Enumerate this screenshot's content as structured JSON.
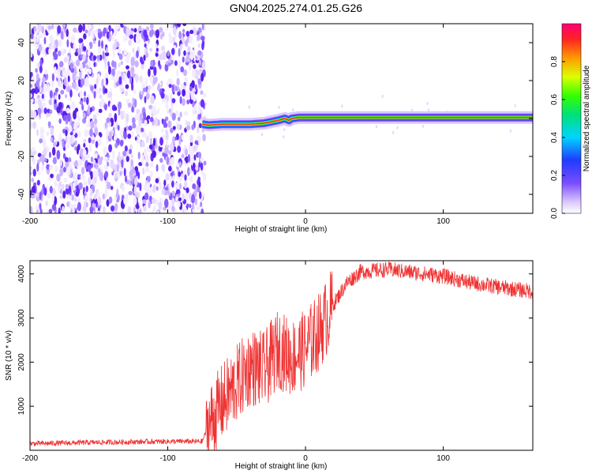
{
  "page": {
    "title": "GN04.2025.274.01.25.G26"
  },
  "chart_data": [
    {
      "type": "heatmap",
      "xlabel": "Height of straight line (km)",
      "ylabel": "Frequency (Hz)",
      "xlim": [
        -200,
        165
      ],
      "ylim": [
        -50,
        50
      ],
      "x_ticks": [
        -200,
        -100,
        0,
        100
      ],
      "y_ticks": [
        -40,
        -20,
        0,
        20,
        40
      ],
      "tick_labels": {
        "x": [
          "-200",
          "-100",
          "0",
          "100"
        ],
        "y": [
          "-40",
          "-20",
          "0",
          "20",
          "40"
        ]
      },
      "colorbar": {
        "label": "Normalized spectral amplitude",
        "range": [
          0,
          1
        ],
        "ticks": [
          0.0,
          0.2,
          0.4,
          0.6,
          0.8
        ],
        "tick_labels": [
          "0.0",
          "0.2",
          "0.4",
          "0.6",
          "0.8"
        ]
      },
      "noise_region_x": [
        -200,
        -73
      ],
      "signal_trace": {
        "x": [
          -75,
          -70,
          -60,
          -50,
          -40,
          -30,
          -20,
          -15,
          -12,
          -10,
          -5,
          0,
          50,
          100,
          165
        ],
        "y": [
          -3,
          -3.5,
          -3,
          -3,
          -3,
          -2.5,
          -1,
          0,
          -1,
          0,
          0.5,
          0.5,
          0.5,
          0.5,
          0.5
        ]
      },
      "grid": false,
      "legend": "colorbar right"
    },
    {
      "type": "line",
      "xlabel": "Height of straight line (km)",
      "ylabel": "SNR (10 * v/v)",
      "xlim": [
        -200,
        165
      ],
      "ylim": [
        0,
        4300
      ],
      "x_ticks": [
        -200,
        -100,
        0,
        100
      ],
      "y_ticks": [
        1000,
        2000,
        3000,
        4000
      ],
      "tick_labels": {
        "x": [
          "-200",
          "-100",
          "0",
          "100"
        ],
        "y": [
          "1000",
          "2000",
          "3000",
          "4000"
        ]
      },
      "color": "#ee3333",
      "series": [
        {
          "x": [
            -200,
            -150,
            -100,
            -75,
            -70,
            -60,
            -50,
            -40,
            -30,
            -20,
            -10,
            0,
            10,
            20,
            30,
            40,
            60,
            100,
            120,
            140,
            165
          ],
          "y": [
            150,
            180,
            200,
            200,
            600,
            1100,
            1500,
            1900,
            1800,
            2300,
            2100,
            2300,
            2700,
            3300,
            3800,
            4050,
            4100,
            3950,
            3800,
            3700,
            3600
          ]
        }
      ],
      "grid": false
    }
  ]
}
